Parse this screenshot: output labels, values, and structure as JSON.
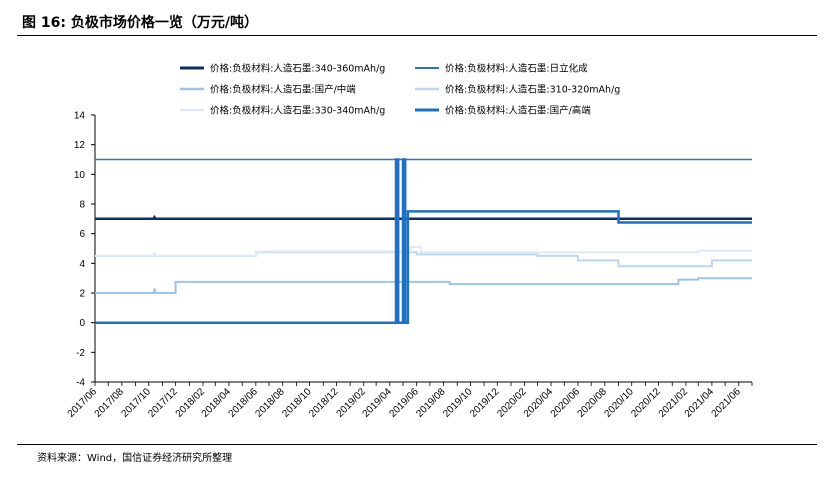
{
  "figure": {
    "title": "图 16: 负极市场价格一览（万元/吨）",
    "source": "资料来源：Wind，国信证券经济研究所整理"
  },
  "chart_data": {
    "type": "line",
    "title": "负极市场价格一览（万元/吨）",
    "xlabel": "",
    "ylabel": "",
    "ylim": [
      -4,
      14
    ],
    "yticks": [
      -4,
      -2,
      0,
      2,
      4,
      6,
      8,
      10,
      12,
      14
    ],
    "xlim": [
      "2017-06",
      "2021-07"
    ],
    "xtick_labels": [
      "2017/06",
      "2017/08",
      "2017/10",
      "2017/12",
      "2018/02",
      "2018/04",
      "2018/06",
      "2018/08",
      "2018/10",
      "2018/12",
      "2019/02",
      "2019/04",
      "2019/06",
      "2019/08",
      "2019/10",
      "2019/12",
      "2020/02",
      "2020/04",
      "2020/06",
      "2020/08",
      "2020/10",
      "2020/12",
      "2021/02",
      "2021/04",
      "2021/06"
    ],
    "grid": false,
    "legend_position": "top",
    "series": [
      {
        "name": "价格:负极材料:人造石墨:340-360mAh/g",
        "color": "#0a2f63",
        "width": 2.5,
        "points": [
          [
            "2017-06",
            7
          ],
          [
            "2017-10-12",
            7
          ],
          [
            "2017-10-14",
            7.1
          ],
          [
            "2017-10-16",
            7
          ],
          [
            "2021-07",
            7
          ]
        ]
      },
      {
        "name": "价格:负极材料:人造石墨:日立化成",
        "color": "#2f74b5",
        "width": 1.5,
        "points": [
          [
            "2017-06",
            11
          ],
          [
            "2021-07",
            11
          ]
        ]
      },
      {
        "name": "价格:负极材料:人造石墨:国产/中端",
        "color": "#9dc3e6",
        "width": 2,
        "points": [
          [
            "2017-06",
            2
          ],
          [
            "2017-10-12",
            2
          ],
          [
            "2017-10-14",
            2.3
          ],
          [
            "2017-10-16",
            2
          ],
          [
            "2017-12-01",
            2
          ],
          [
            "2017-12-01",
            2.75
          ],
          [
            "2019-08-15",
            2.75
          ],
          [
            "2019-08-15",
            2.6
          ],
          [
            "2021-01-15",
            2.6
          ],
          [
            "2021-01-15",
            2.9
          ],
          [
            "2021-03-01",
            2.9
          ],
          [
            "2021-03-01",
            3.0
          ],
          [
            "2021-07",
            3.0
          ]
        ]
      },
      {
        "name": "价格:负极材料:人造石墨:310-320mAh/g",
        "color": "#bdd7ee",
        "width": 2,
        "points": [
          [
            "2017-06",
            4.5
          ],
          [
            "2018-06-01",
            4.5
          ],
          [
            "2018-06-01",
            4.75
          ],
          [
            "2019-06-01",
            4.75
          ],
          [
            "2019-06-01",
            4.6
          ],
          [
            "2020-03-01",
            4.6
          ],
          [
            "2020-03-01",
            4.5
          ],
          [
            "2020-06-01",
            4.5
          ],
          [
            "2020-06-01",
            4.2
          ],
          [
            "2020-09-01",
            4.2
          ],
          [
            "2020-09-01",
            3.8
          ],
          [
            "2021-04-01",
            3.8
          ],
          [
            "2021-04-01",
            4.2
          ],
          [
            "2021-07",
            4.2
          ]
        ]
      },
      {
        "name": "价格:负极材料:人造石墨:330-340mAh/g",
        "color": "#deebf7",
        "width": 2,
        "points": [
          [
            "2017-06",
            4.5
          ],
          [
            "2017-10-12",
            4.5
          ],
          [
            "2017-10-14",
            4.75
          ],
          [
            "2017-10-16",
            4.5
          ],
          [
            "2018-06-01",
            4.5
          ],
          [
            "2018-06-01",
            4.8
          ],
          [
            "2019-05-20",
            4.8
          ],
          [
            "2019-05-20",
            5.1
          ],
          [
            "2019-06-10",
            5.1
          ],
          [
            "2019-06-10",
            4.75
          ],
          [
            "2021-03-01",
            4.75
          ],
          [
            "2021-03-01",
            4.85
          ],
          [
            "2021-07",
            4.85
          ]
        ]
      },
      {
        "name": "价格:负极材料:人造石墨:国产/高端",
        "color": "#1f6fc4",
        "width": 2.5,
        "points": [
          [
            "2017-06",
            0
          ],
          [
            "2019-04-15",
            0
          ],
          [
            "2019-04-15",
            11
          ],
          [
            "2019-04-20",
            11
          ],
          [
            "2019-04-20",
            0
          ],
          [
            "2019-05-01",
            0
          ],
          [
            "2019-05-01",
            11
          ],
          [
            "2019-05-06",
            11
          ],
          [
            "2019-05-06",
            0
          ],
          [
            "2019-05-12",
            0
          ],
          [
            "2019-05-12",
            7.5
          ],
          [
            "2020-09-01",
            7.5
          ],
          [
            "2020-09-01",
            6.75
          ],
          [
            "2021-07",
            6.75
          ]
        ]
      }
    ]
  }
}
